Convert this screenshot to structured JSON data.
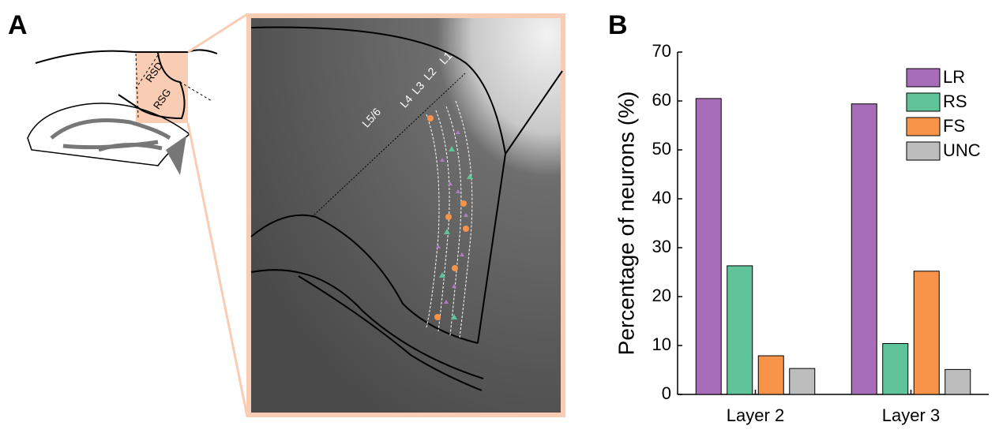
{
  "panel_labels": [
    "A",
    "B"
  ],
  "diagram": {
    "regions": [
      "RSD",
      "RSG"
    ],
    "layers": [
      "L1",
      "L2",
      "L3",
      "L4",
      "L5/6"
    ]
  },
  "chart_data": {
    "type": "bar",
    "y_label": "Percentage of neurons (%)",
    "categories": [
      "Layer 2",
      "Layer 3"
    ],
    "series": [
      {
        "name": "LR",
        "color": "#a86db8",
        "values": [
          60.5,
          59.4
        ]
      },
      {
        "name": "RS",
        "color": "#5fc49a",
        "values": [
          26.3,
          10.4
        ]
      },
      {
        "name": "FS",
        "color": "#f7944a",
        "values": [
          7.9,
          25.2
        ]
      },
      {
        "name": "UNC",
        "color": "#bdbdbd",
        "values": [
          5.3,
          5.1
        ]
      }
    ],
    "ylim": [
      0,
      70
    ],
    "yticks": [
      0,
      10,
      20,
      30,
      40,
      50,
      60,
      70
    ],
    "legend": "upper-right"
  }
}
